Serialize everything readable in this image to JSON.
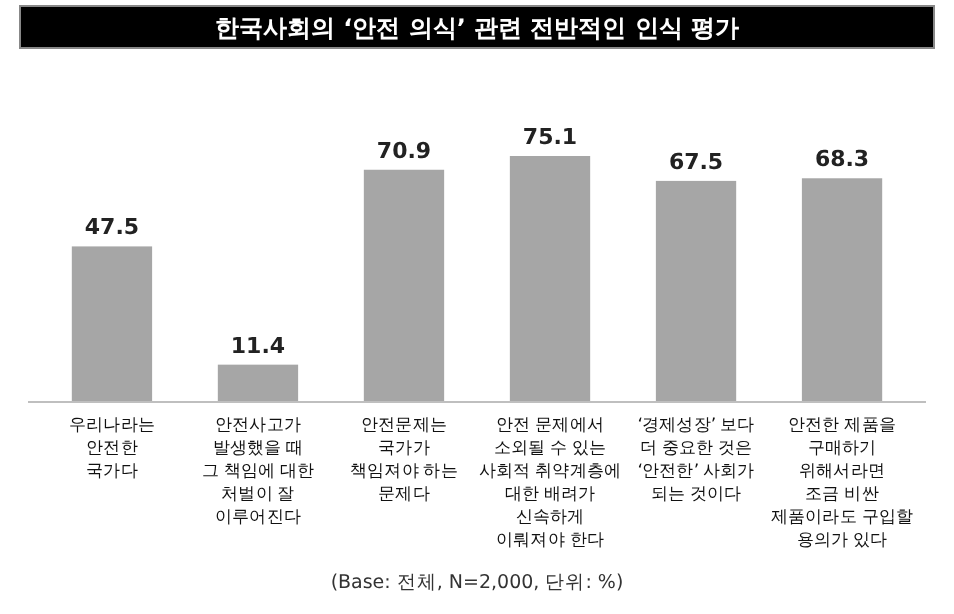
{
  "chart_data": {
    "type": "bar",
    "title": "한국사회의 ‘안전 의식’ 관련 전반적인 인식 평가",
    "categories": [
      "우리나라는\n안전한\n국가다",
      "안전사고가\n발생했을 때\n그 책임에 대한\n처벌이 잘\n이루어진다",
      "안전문제는\n국가가\n책임져야 하는\n문제다",
      "안전 문제에서\n소외될 수 있는\n사회적 취약계층에\n대한 배려가\n신속하게\n이뤄져야 한다",
      "‘경제성장’ 보다\n더 중요한 것은\n‘안전한’ 사회가\n되는 것이다",
      "안전한 제품을\n구매하기\n위해서라면\n조금 비싼\n제품이라도 구입할\n용의가 있다"
    ],
    "values": [
      47.5,
      11.4,
      70.9,
      75.1,
      67.5,
      68.3
    ],
    "color": "#a6a6a6",
    "data_labels": true,
    "annotations": [
      "(Base: 전체, N=2,000, 단위: %)"
    ]
  }
}
